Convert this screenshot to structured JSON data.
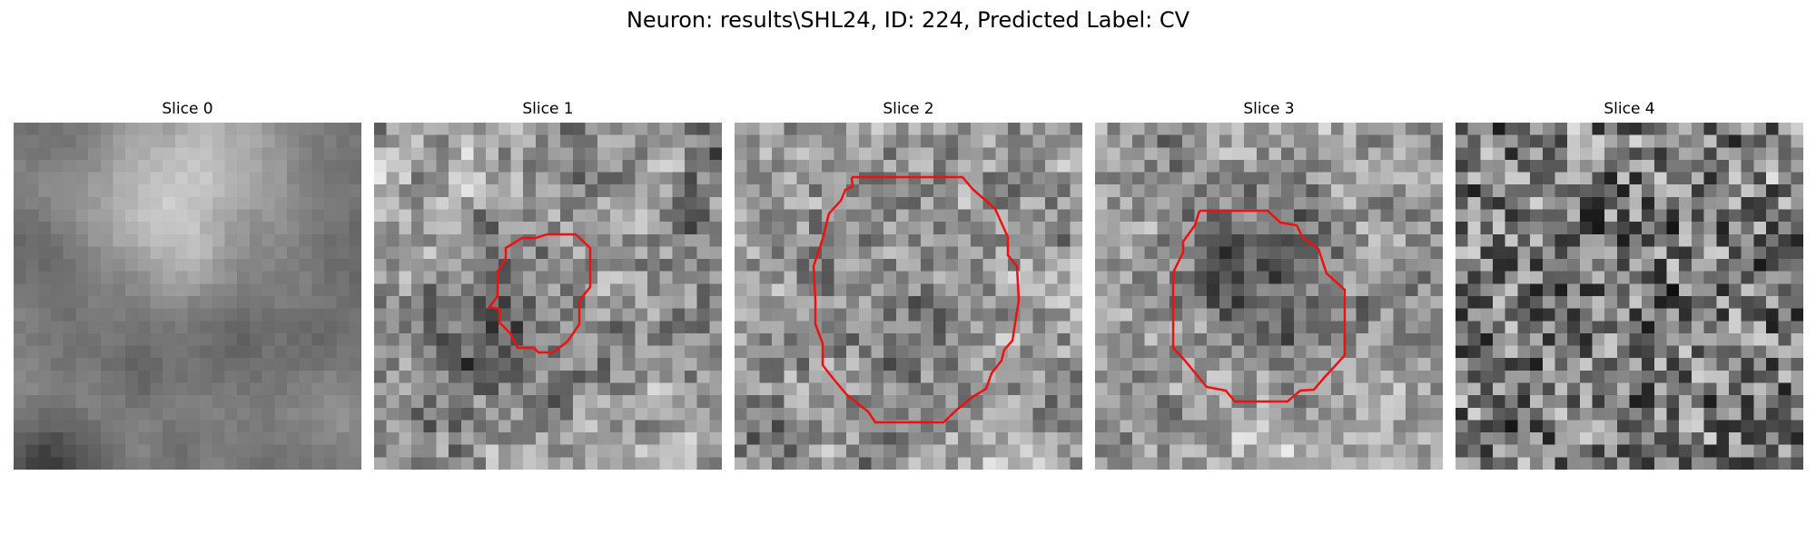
{
  "title": "Neuron: results\\SHL24, ID: 224, Predicted Label: CV",
  "overlay_color": "#ee1111",
  "slices": [
    {
      "title": "Slice 0",
      "has_contour": false
    },
    {
      "title": "Slice 1",
      "has_contour": true
    },
    {
      "title": "Slice 2",
      "has_contour": true
    },
    {
      "title": "Slice 3",
      "has_contour": true
    },
    {
      "title": "Slice 4",
      "has_contour": false
    }
  ]
}
